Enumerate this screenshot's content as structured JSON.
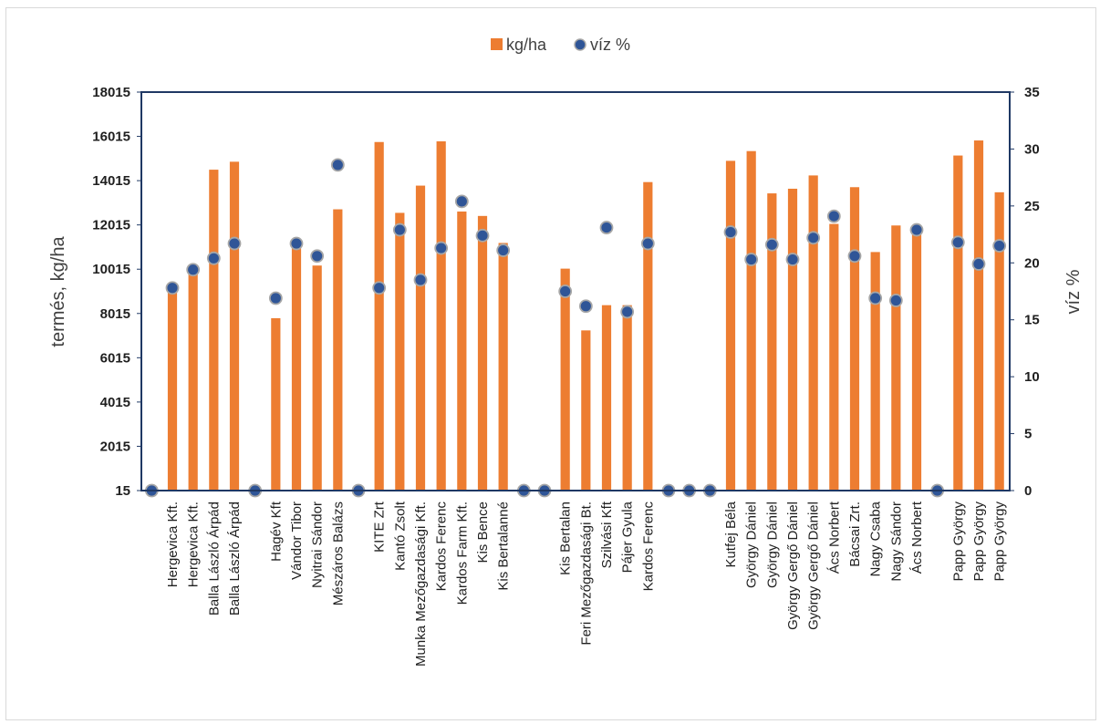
{
  "chart_data": {
    "type": "bar",
    "categories": [
      "",
      "Hergevica Kft.",
      "Hergevica Kft.",
      "Balla László Árpád",
      "Balla László Árpád",
      "",
      "Hagév Kft",
      "Vándor Tibor",
      "Nyitrai Sándor",
      "Mészáros Balázs",
      "",
      "KITE Zrt",
      "Kantó Zsolt",
      "Munka Mezőgazdasági Kft.",
      "Kardos Ferenc",
      "Kardos Farm Kft.",
      "Kis Bence",
      "Kis Bertalanné",
      "",
      "",
      "Kis Bertalan",
      "Feri Mezőgazdasági Bt.",
      "Szilvási Kft",
      "Pájer Gyula",
      "Kardos Ferenc",
      "",
      "",
      "",
      "Kutfej Béla",
      "György Dániel",
      "György Dániel",
      "György Gergő Dániel",
      "György Gergő Dániel",
      "Ács Norbert",
      "Bácsai Zrt.",
      "Nagy Csaba",
      "Nagy Sándor",
      "Ács Norbert",
      "",
      "Papp György",
      "Papp György",
      "Papp György"
    ],
    "series": [
      {
        "name": "kg/ha",
        "type": "bar",
        "axis": "left",
        "color": "#ED7D31",
        "values": [
          0,
          9020,
          9940,
          14510,
          14870,
          0,
          7800,
          11200,
          10180,
          12720,
          0,
          15760,
          12560,
          13790,
          15790,
          12620,
          12420,
          11200,
          0,
          0,
          10040,
          7250,
          8390,
          8390,
          13950,
          0,
          0,
          0,
          14910,
          15350,
          13440,
          13650,
          14250,
          12060,
          13720,
          10790,
          11990,
          11690,
          0,
          15150,
          15830,
          13490
        ]
      },
      {
        "name": "víz %",
        "type": "scatter",
        "axis": "right",
        "color": "#2F5597",
        "values": [
          0,
          17.8,
          19.4,
          20.4,
          21.7,
          0,
          16.9,
          21.7,
          20.6,
          28.6,
          0,
          17.8,
          22.9,
          18.5,
          21.3,
          25.4,
          22.4,
          21.1,
          0,
          0,
          17.5,
          16.2,
          23.1,
          15.7,
          21.7,
          0,
          0,
          0,
          22.7,
          20.3,
          21.6,
          20.3,
          22.2,
          24.1,
          20.6,
          16.9,
          16.7,
          22.9,
          0,
          21.8,
          19.9,
          21.5
        ]
      }
    ],
    "ylabel": "termés, kg/ha",
    "y2label": "víz %",
    "ylim": [
      15,
      18015
    ],
    "yticks": [
      "18015",
      "16015",
      "14015",
      "12015",
      "10015",
      "8015",
      "6015",
      "4015",
      "2015",
      "15"
    ],
    "y2lim": [
      0,
      35
    ],
    "y2ticks": [
      "35",
      "30",
      "25",
      "20",
      "15",
      "10",
      "5",
      "0"
    ],
    "legend": [
      "kg/ha",
      "víz %"
    ],
    "legend_position": "top",
    "grid": false,
    "colors": {
      "bar": "#ED7D31",
      "marker_fill": "#2F5597",
      "marker_edge": "#A6A6A6",
      "plot_border": "#1F3864"
    }
  }
}
